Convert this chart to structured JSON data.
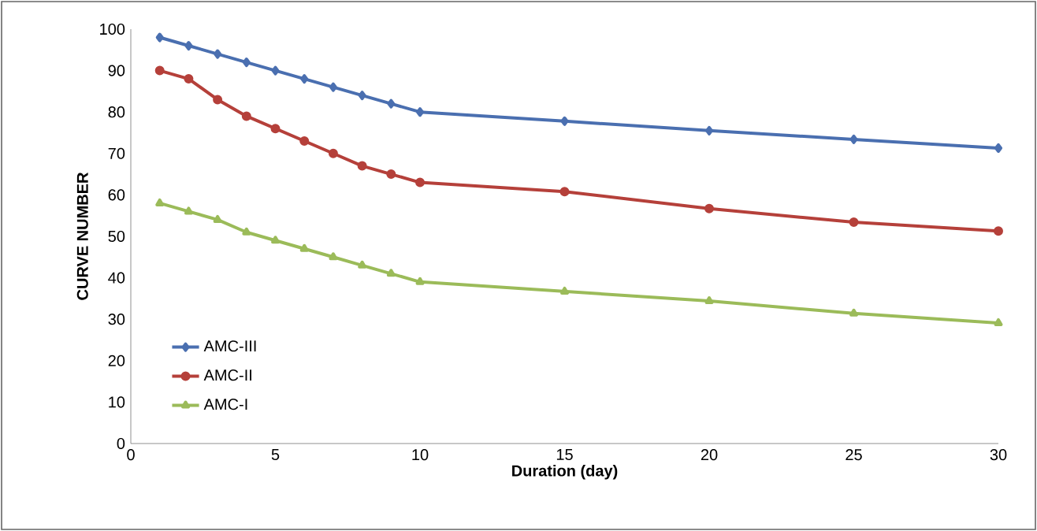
{
  "chart_data": {
    "type": "line",
    "xlabel": "Duration (day)",
    "ylabel": "CURVE NUMBER",
    "x": [
      1,
      2,
      3,
      4,
      5,
      6,
      7,
      8,
      9,
      10,
      15,
      20,
      25,
      30
    ],
    "series": [
      {
        "name": "AMC-III",
        "color": "#4a6fb0",
        "marker": "diamond",
        "values": [
          98,
          96,
          94,
          92,
          90,
          88,
          86,
          84,
          82,
          80,
          77.8,
          75.5,
          73.4,
          71.3
        ]
      },
      {
        "name": "AMC-II",
        "color": "#b5403a",
        "marker": "circle",
        "values": [
          90,
          88,
          83,
          79,
          76,
          73,
          70,
          67,
          65,
          63,
          60.8,
          56.7,
          53.4,
          51.3
        ]
      },
      {
        "name": "AMC-I",
        "color": "#9bbb59",
        "marker": "triangle",
        "values": [
          58,
          56,
          54,
          51,
          49,
          47,
          45,
          43,
          41,
          39,
          36.7,
          34.4,
          31.4,
          29.1
        ]
      }
    ],
    "xlim": [
      0,
      30
    ],
    "xticks": [
      0,
      5,
      10,
      15,
      20,
      25,
      30
    ],
    "ylim": [
      0,
      100
    ],
    "yticks": [
      0,
      10,
      20,
      30,
      40,
      50,
      60,
      70,
      80,
      90,
      100
    ],
    "grid": false,
    "legend": "bottom left",
    "line_style": "solid"
  }
}
